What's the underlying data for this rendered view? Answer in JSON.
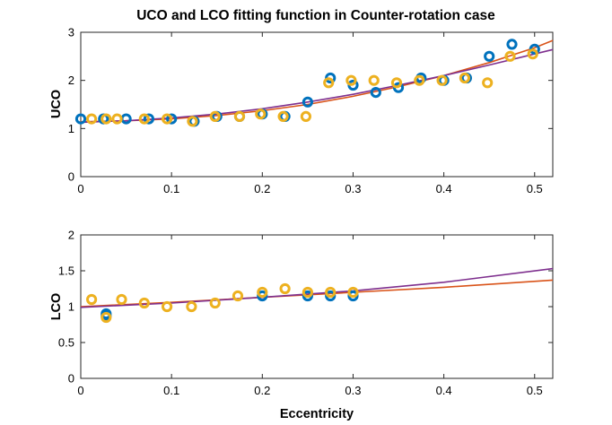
{
  "figure_title": "UCO and LCO fitting function in Counter-rotation case",
  "colors": {
    "blue_markers": "#0072BD",
    "orange_markers": "#EDB120",
    "fit_orange": "#D95319",
    "fit_purple": "#7E2F8E"
  },
  "chart_data": [
    {
      "type": "scatter",
      "title": "UCO and LCO fitting function in Counter-rotation case",
      "xlabel": "",
      "ylabel": "UCO",
      "xlim": [
        0,
        0.52
      ],
      "ylim": [
        0,
        3
      ],
      "xticks": [
        0,
        0.1,
        0.2,
        0.3,
        0.4,
        0.5
      ],
      "xtick_labels": [
        "0",
        "0.1",
        "0.2",
        "0.3",
        "0.4",
        "0.5"
      ],
      "yticks": [
        0,
        1,
        2,
        3
      ],
      "ytick_labels": [
        "0",
        "1",
        "2",
        "3"
      ],
      "grid": false,
      "series": [
        {
          "color": "#0072BD",
          "marker": "circle",
          "points": [
            [
              0,
              1.2
            ],
            [
              0.025,
              1.2
            ],
            [
              0.05,
              1.2
            ],
            [
              0.075,
              1.2
            ],
            [
              0.1,
              1.2
            ],
            [
              0.125,
              1.15
            ],
            [
              0.15,
              1.25
            ],
            [
              0.175,
              1.25
            ],
            [
              0.2,
              1.3
            ],
            [
              0.225,
              1.25
            ],
            [
              0.25,
              1.55
            ],
            [
              0.275,
              2.05
            ],
            [
              0.3,
              1.9
            ],
            [
              0.325,
              1.75
            ],
            [
              0.35,
              1.85
            ],
            [
              0.375,
              2.05
            ],
            [
              0.4,
              2.0
            ],
            [
              0.425,
              2.05
            ],
            [
              0.45,
              2.5
            ],
            [
              0.475,
              2.75
            ],
            [
              0.5,
              2.65
            ]
          ]
        },
        {
          "color": "#EDB120",
          "marker": "circle",
          "points": [
            [
              0.012,
              1.2
            ],
            [
              0.028,
              1.2
            ],
            [
              0.04,
              1.2
            ],
            [
              0.07,
              1.2
            ],
            [
              0.095,
              1.2
            ],
            [
              0.123,
              1.15
            ],
            [
              0.148,
              1.25
            ],
            [
              0.175,
              1.25
            ],
            [
              0.198,
              1.3
            ],
            [
              0.223,
              1.25
            ],
            [
              0.248,
              1.25
            ],
            [
              0.273,
              1.95
            ],
            [
              0.298,
              2.0
            ],
            [
              0.323,
              2.0
            ],
            [
              0.348,
              1.95
            ],
            [
              0.373,
              2.0
            ],
            [
              0.398,
              2.0
            ],
            [
              0.423,
              2.05
            ],
            [
              0.448,
              1.95
            ],
            [
              0.473,
              2.5
            ],
            [
              0.498,
              2.55
            ]
          ]
        },
        {
          "type": "line",
          "color": "#D95319",
          "x": [
            0,
            0.05,
            0.1,
            0.15,
            0.2,
            0.25,
            0.3,
            0.35,
            0.4,
            0.45,
            0.5,
            0.52
          ],
          "values": [
            1.14,
            1.16,
            1.2,
            1.27,
            1.37,
            1.5,
            1.67,
            1.87,
            2.1,
            2.37,
            2.68,
            2.83
          ]
        },
        {
          "type": "line",
          "color": "#7E2F8E",
          "x": [
            0,
            0.05,
            0.1,
            0.15,
            0.2,
            0.25,
            0.3,
            0.35,
            0.4,
            0.45,
            0.5,
            0.52
          ],
          "values": [
            1.13,
            1.16,
            1.22,
            1.3,
            1.41,
            1.55,
            1.71,
            1.9,
            2.1,
            2.32,
            2.55,
            2.64
          ]
        }
      ]
    },
    {
      "type": "scatter",
      "title": "",
      "xlabel": "Eccentricity",
      "ylabel": "LCO",
      "xlim": [
        0,
        0.52
      ],
      "ylim": [
        0,
        2
      ],
      "xticks": [
        0,
        0.1,
        0.2,
        0.3,
        0.4,
        0.5
      ],
      "xtick_labels": [
        "0",
        "0.1",
        "0.2",
        "0.3",
        "0.4",
        "0.5"
      ],
      "yticks": [
        0,
        0.5,
        1,
        1.5,
        2
      ],
      "ytick_labels": [
        "0",
        "0.5",
        "1",
        "1.5",
        "2"
      ],
      "grid": false,
      "series": [
        {
          "color": "#0072BD",
          "marker": "circle",
          "points": [
            [
              0.028,
              0.9
            ],
            [
              0.028,
              0.87
            ],
            [
              0.2,
              1.15
            ],
            [
              0.25,
              1.15
            ],
            [
              0.275,
              1.15
            ],
            [
              0.3,
              1.15
            ]
          ]
        },
        {
          "color": "#EDB120",
          "marker": "circle",
          "points": [
            [
              0.012,
              1.1
            ],
            [
              0.028,
              0.85
            ],
            [
              0.045,
              1.1
            ],
            [
              0.07,
              1.05
            ],
            [
              0.095,
              1.0
            ],
            [
              0.122,
              1.0
            ],
            [
              0.148,
              1.05
            ],
            [
              0.173,
              1.15
            ],
            [
              0.2,
              1.2
            ],
            [
              0.225,
              1.25
            ],
            [
              0.25,
              1.2
            ],
            [
              0.275,
              1.2
            ],
            [
              0.3,
              1.2
            ]
          ]
        },
        {
          "type": "line",
          "color": "#D95319",
          "x": [
            0,
            0.1,
            0.2,
            0.3,
            0.4,
            0.52
          ],
          "values": [
            1.0,
            1.06,
            1.13,
            1.2,
            1.27,
            1.37
          ]
        },
        {
          "type": "line",
          "color": "#7E2F8E",
          "x": [
            0,
            0.1,
            0.2,
            0.3,
            0.4,
            0.52
          ],
          "values": [
            0.99,
            1.05,
            1.13,
            1.22,
            1.34,
            1.53
          ]
        }
      ]
    }
  ]
}
